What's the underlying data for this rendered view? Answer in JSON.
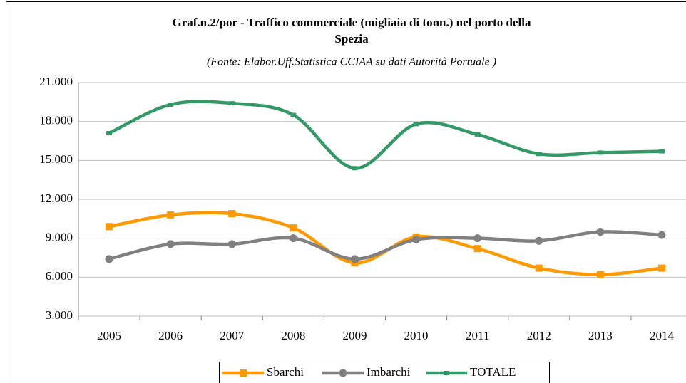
{
  "chart_data": {
    "type": "line",
    "title": "Graf.n.2/por - Traffico commerciale (migliaia di tonn.) nel porto della Spezia",
    "subtitle": "(Fonte:  Elabor.Uff.Statistica CCIAA su dati Autorità Portuale )",
    "categories": [
      "2005",
      "2006",
      "2007",
      "2008",
      "2009",
      "2010",
      "2011",
      "2012",
      "2013",
      "2014"
    ],
    "series": [
      {
        "name": "Sbarchi",
        "color": "#ff9900",
        "marker": "square",
        "values": [
          9900,
          10800,
          10900,
          9800,
          7100,
          9100,
          8200,
          6700,
          6200,
          6700
        ]
      },
      {
        "name": "Imbarchi",
        "color": "#808080",
        "marker": "circle",
        "values": [
          7400,
          8550,
          8550,
          9000,
          7400,
          8900,
          9000,
          8800,
          9500,
          9250
        ]
      },
      {
        "name": "TOTALE",
        "color": "#339966",
        "marker": "dash",
        "values": [
          17100,
          19300,
          19400,
          18500,
          14400,
          17800,
          17000,
          15500,
          15600,
          15700
        ]
      }
    ],
    "ylim": [
      3000,
      21000
    ],
    "yticks": [
      {
        "value": 3000,
        "label": "3.000"
      },
      {
        "value": 6000,
        "label": "6.000"
      },
      {
        "value": 9000,
        "label": "9.000"
      },
      {
        "value": 12000,
        "label": "12.000"
      },
      {
        "value": 15000,
        "label": "15.000"
      },
      {
        "value": 18000,
        "label": "18.000"
      },
      {
        "value": 21000,
        "label": "21.000"
      }
    ],
    "grid": true,
    "smooth": true,
    "legend": "bottom"
  }
}
